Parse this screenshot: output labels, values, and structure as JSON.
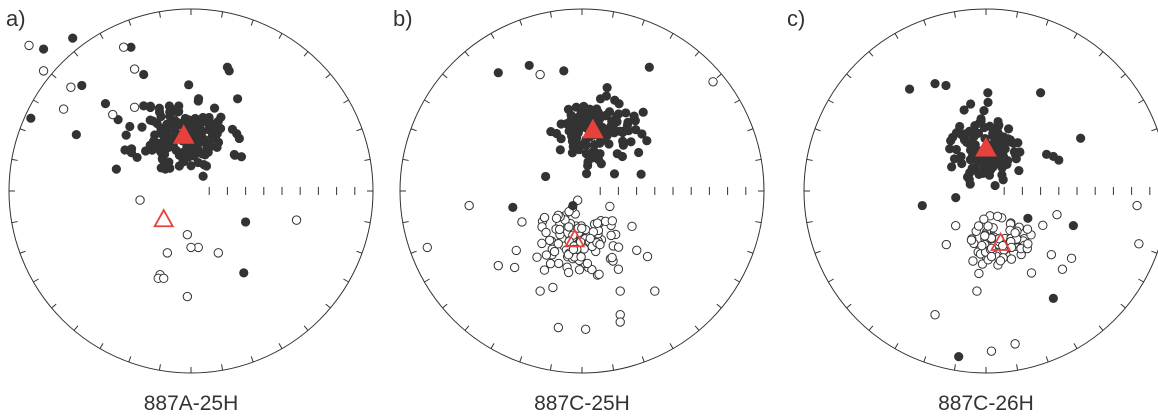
{
  "figure": {
    "colors": {
      "outline": "#333333",
      "filled_point": "#333333",
      "mean": "#e8413c"
    }
  },
  "panels": [
    {
      "letter": "a)",
      "caption": "887A-25H",
      "lower_mean_marker": "open-red-triangle",
      "upper_mean_marker": "filled-red-triangle",
      "scatter_seed": 11,
      "upper_cluster": {
        "count": 170,
        "spread": 0.16
      },
      "lower_cluster": {
        "count": 0,
        "spread": 0.1
      },
      "extra_filled": [
        [
          -0.88,
          0.4
        ],
        [
          -0.47,
          0.48
        ],
        [
          -0.6,
          0.58
        ],
        [
          -0.65,
          0.84
        ],
        [
          -0.81,
          0.78
        ],
        [
          -0.26,
          0.64
        ],
        [
          -0.33,
          0.79
        ],
        [
          0.2,
          0.68
        ],
        [
          0.21,
          0.66
        ],
        [
          -0.63,
          0.31
        ],
        [
          -0.41,
          0.12
        ],
        [
          -0.05,
          0.21
        ],
        [
          0.3,
          -0.17
        ],
        [
          0.29,
          -0.45
        ]
      ],
      "extra_open": [
        [
          -0.89,
          0.8
        ],
        [
          -0.81,
          0.66
        ],
        [
          -0.66,
          0.57
        ],
        [
          -0.7,
          0.45
        ],
        [
          -0.37,
          0.79
        ],
        [
          -0.31,
          0.67
        ],
        [
          -0.43,
          0.42
        ],
        [
          -0.31,
          0.46
        ],
        [
          -0.28,
          -0.05
        ],
        [
          0.58,
          -0.16
        ],
        [
          -0.02,
          -0.24
        ],
        [
          0.04,
          -0.31
        ],
        [
          -0.13,
          -0.34
        ],
        [
          0.15,
          -0.34
        ],
        [
          -0.17,
          -0.46
        ],
        [
          -0.18,
          -0.48
        ],
        [
          -0.15,
          -0.48
        ],
        [
          -0.02,
          -0.58
        ],
        [
          0.0,
          -0.31
        ]
      ]
    },
    {
      "letter": "b)",
      "caption": "887C-25H",
      "lower_mean_marker": "open-red-triangle",
      "upper_mean_marker": "filled-red-triangle",
      "scatter_seed": 29,
      "upper_cluster": {
        "count": 130,
        "spread": 0.14
      },
      "lower_cluster": {
        "count": 110,
        "spread": 0.16
      },
      "extra_filled": [
        [
          -0.46,
          0.65
        ],
        [
          -0.29,
          0.69
        ],
        [
          -0.1,
          0.66
        ],
        [
          0.37,
          0.68
        ],
        [
          -0.38,
          -0.09
        ],
        [
          -0.05,
          -0.08
        ],
        [
          -0.2,
          0.08
        ]
      ],
      "extra_open": [
        [
          0.72,
          0.6
        ],
        [
          -0.23,
          0.64
        ],
        [
          -0.62,
          -0.08
        ],
        [
          -0.85,
          -0.31
        ],
        [
          -0.37,
          -0.42
        ],
        [
          -0.23,
          -0.55
        ],
        [
          -0.16,
          -0.53
        ],
        [
          0.21,
          -0.55
        ],
        [
          0.4,
          -0.55
        ],
        [
          -0.13,
          -0.75
        ],
        [
          0.21,
          -0.68
        ],
        [
          0.21,
          -0.72
        ],
        [
          0.02,
          -0.76
        ],
        [
          -0.46,
          -0.41
        ],
        [
          0.36,
          -0.36
        ],
        [
          0.2,
          -0.43
        ],
        [
          -0.14,
          -0.15
        ],
        [
          -0.33,
          -0.17
        ]
      ]
    },
    {
      "letter": "c)",
      "caption": "887C-26H",
      "lower_mean_marker": "open-red-triangle",
      "upper_mean_marker": "filled-red-triangle",
      "scatter_seed": 47,
      "upper_cluster": {
        "count": 130,
        "spread": 0.13
      },
      "lower_cluster": {
        "count": 90,
        "spread": 0.12
      },
      "extra_filled": [
        [
          -0.42,
          0.56
        ],
        [
          -0.28,
          0.59
        ],
        [
          -0.22,
          0.58
        ],
        [
          0.01,
          0.54
        ],
        [
          0.3,
          0.54
        ],
        [
          0.52,
          0.29
        ],
        [
          0.37,
          0.19
        ],
        [
          0.4,
          0.17
        ],
        [
          -0.35,
          -0.08
        ],
        [
          0.23,
          -0.15
        ],
        [
          0.48,
          -0.19
        ],
        [
          0.37,
          -0.59
        ],
        [
          -0.15,
          -0.91
        ],
        [
          0.05,
          0.03
        ]
      ],
      "extra_open": [
        [
          0.83,
          -0.08
        ],
        [
          0.84,
          -0.29
        ],
        [
          0.39,
          -0.13
        ],
        [
          0.47,
          -0.37
        ],
        [
          0.42,
          -0.43
        ],
        [
          -0.05,
          -0.55
        ],
        [
          0.03,
          -0.88
        ],
        [
          0.16,
          -0.84
        ],
        [
          -0.28,
          -0.68
        ],
        [
          -0.08,
          -0.27
        ],
        [
          0.16,
          -0.23
        ],
        [
          0.23,
          -0.29
        ],
        [
          0.25,
          -0.45
        ],
        [
          0.14,
          -0.31
        ],
        [
          0.03,
          -0.36
        ]
      ]
    }
  ]
}
